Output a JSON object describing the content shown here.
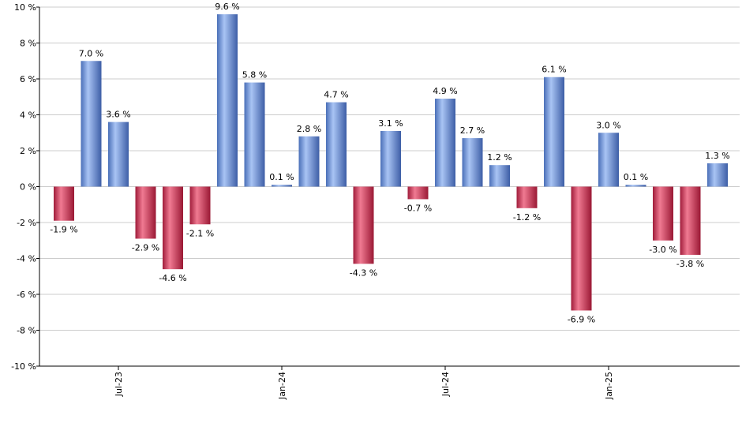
{
  "chart_data": {
    "type": "bar",
    "title": "",
    "xlabel": "",
    "ylabel": "",
    "ylim": [
      -10,
      10
    ],
    "y_ticks": [
      -10,
      -8,
      -6,
      -4,
      -2,
      0,
      2,
      4,
      6,
      8,
      10
    ],
    "y_tick_suffix": " %",
    "grid": true,
    "values": [
      -1.9,
      7.0,
      3.6,
      -2.9,
      -4.6,
      -2.1,
      9.6,
      5.8,
      0.1,
      2.8,
      4.7,
      -4.3,
      3.1,
      -0.7,
      4.9,
      2.7,
      1.2,
      -1.2,
      6.1,
      -6.9,
      3.0,
      0.1,
      -3.0,
      -3.8,
      1.3
    ],
    "labels": [
      "-1.9 %",
      "7.0 %",
      "3.6 %",
      "-2.9 %",
      "-4.6 %",
      "-2.1 %",
      "9.6 %",
      "5.8 %",
      "0.1 %",
      "2.8 %",
      "4.7 %",
      "-4.3 %",
      "3.1 %",
      "-0.7 %",
      "4.9 %",
      "2.7 %",
      "1.2 %",
      "-1.2 %",
      "6.1 %",
      "-6.9 %",
      "3.0 %",
      "0.1 %",
      "-3.0 %",
      "-3.8 %",
      "1.3 %"
    ],
    "x_ticks": [
      {
        "index": 2,
        "label": "Jul-23"
      },
      {
        "index": 8,
        "label": "Jan-24"
      },
      {
        "index": 14,
        "label": "Jul-24"
      },
      {
        "index": 20,
        "label": "Jan-25"
      }
    ],
    "colors": {
      "positive": "#6a8fd8",
      "negative": "#c8304f",
      "grid": "#cccccc",
      "axis": "#000000"
    }
  }
}
